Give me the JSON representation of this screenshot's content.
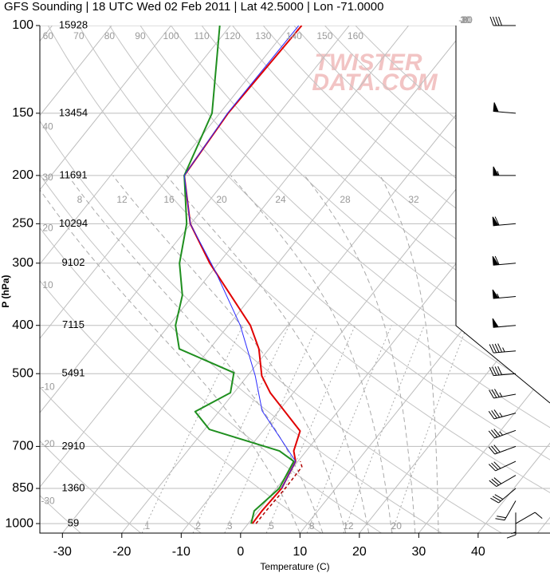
{
  "chart_data": {
    "type": "skewt",
    "title": "GFS Sounding | 18 UTC Wed 02 Feb 2011 | Lat 42.5000 | Lon -71.0000",
    "xlabel": "Temperature (C)",
    "ylabel": "P (hPa)",
    "xlim": [
      -33.8,
      52.1
    ],
    "ylim": [
      1045,
      100
    ],
    "log_y": true,
    "xticks": [
      -30,
      -20,
      -10,
      0,
      10,
      20,
      30,
      40
    ],
    "yticks": [
      100,
      150,
      200,
      250,
      300,
      400,
      500,
      700,
      850,
      1000
    ],
    "heights": [
      15928,
      13454,
      11691,
      10294,
      9102,
      7115,
      5491,
      2910,
      1360,
      59
    ],
    "grid": true,
    "watermark": [
      "TWISTER",
      "DATA.COM"
    ],
    "isotherms": [
      -110,
      -100,
      -90,
      -80,
      -70,
      -60,
      -50,
      -40,
      -30,
      -20,
      -10,
      0,
      10,
      20,
      30,
      40,
      50
    ],
    "isotherm_labels": [
      -30,
      -20,
      -10,
      0,
      10,
      20,
      30
    ],
    "dry_adiabats": [
      -30,
      -20,
      -10,
      10,
      20,
      30,
      40,
      60,
      70,
      80,
      90,
      100,
      110,
      120,
      130,
      140,
      150,
      160
    ],
    "moist_adiabats": [
      8,
      12,
      16,
      20,
      24,
      28,
      32
    ],
    "mixing_ratios": [
      1,
      2,
      3,
      5,
      8,
      12,
      20
    ],
    "series": [
      {
        "color": "#e00000",
        "pressure": [
          1000,
          943,
          850,
          750,
          715,
          652,
          546,
          505,
          446,
          400,
          300,
          250,
          200,
          150,
          100
        ],
        "values": [
          0.7,
          0.6,
          0.9,
          -0.4,
          -2.1,
          -3.7,
          -13.9,
          -17.6,
          -21.7,
          -26.3,
          -41.5,
          -50.1,
          -57.6,
          -58.6,
          -58.0
        ]
      },
      {
        "color": "#1f8f1f",
        "pressure": [
          1000,
          943,
          850,
          750,
          715,
          647,
          596,
          546,
          498,
          446,
          400,
          348,
          300,
          250,
          200,
          150,
          100
        ],
        "values": [
          0.5,
          -0.7,
          0.5,
          -0.7,
          -4.5,
          -19.2,
          -24.0,
          -20.6,
          -22.7,
          -35.1,
          -38.9,
          -41.8,
          -46.6,
          -50.7,
          -57.6,
          -61.3,
          -71.8
        ]
      },
      {
        "color": "#2b2bff",
        "pressure": [
          850,
          750,
          671,
          594,
          505,
          400,
          312,
          250,
          200,
          150,
          100
        ],
        "values": [
          0.9,
          -0.4,
          -6.3,
          -12.8,
          -18.7,
          -28.0,
          -39.4,
          -50.1,
          -57.6,
          -58.7,
          -58.5
        ]
      },
      {
        "color": "#b00000",
        "dash": true,
        "pressure": [
          1000,
          943,
          850,
          769,
          750
        ],
        "values": [
          1.3,
          1.3,
          1.5,
          1.4,
          0.4
        ]
      }
    ],
    "wind_barbs": {
      "pressure": [
        100,
        150,
        200,
        250,
        300,
        350,
        400,
        450,
        500,
        550,
        600,
        650,
        700,
        750,
        800,
        850,
        900,
        950,
        1000
      ],
      "speed": [
        40,
        50,
        55,
        60,
        60,
        55,
        50,
        45,
        40,
        35,
        35,
        35,
        30,
        30,
        30,
        30,
        20,
        15,
        10
      ],
      "direction": [
        270,
        275,
        270,
        265,
        265,
        265,
        265,
        265,
        265,
        260,
        255,
        250,
        250,
        245,
        240,
        230,
        210,
        180,
        60
      ]
    }
  }
}
